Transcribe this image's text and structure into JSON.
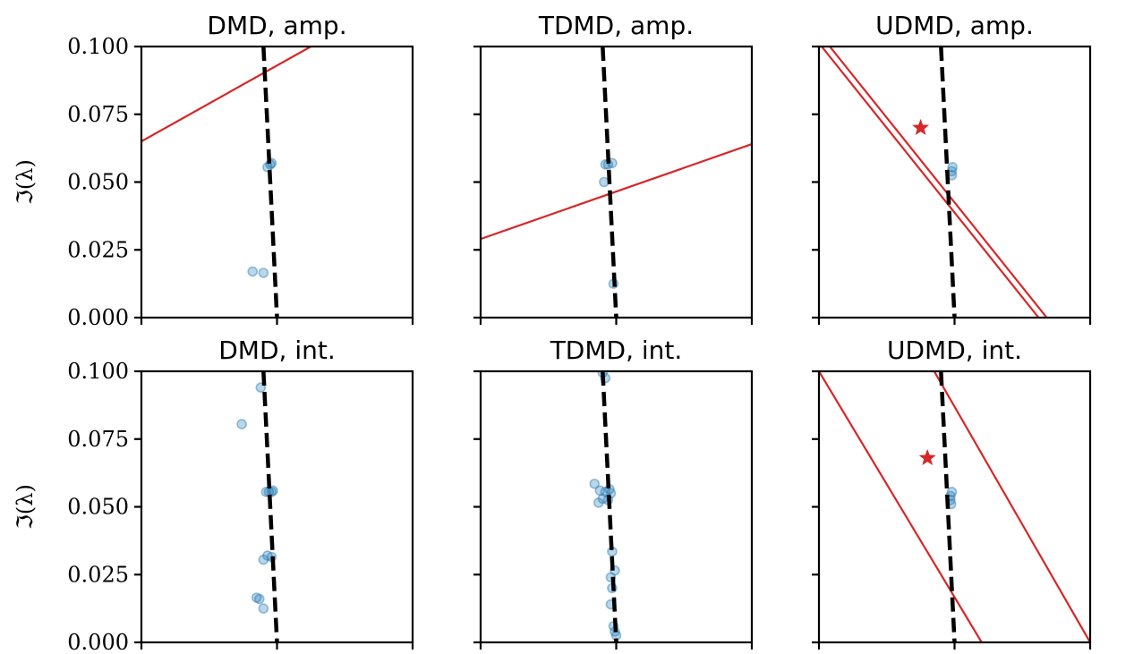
{
  "chart_data": {
    "type": "scatter",
    "ylabel": "ℑ(λ)",
    "ylim": [
      0,
      0.1
    ],
    "y_ticks": [
      "0.000",
      "0.025",
      "0.050",
      "0.075",
      "0.100"
    ],
    "xlim": [
      -1,
      1
    ],
    "panels": [
      {
        "title": "DMD, amp.",
        "dashed_curve": [
          [
            -0.1,
            0.1
          ],
          [
            0.0,
            0.0
          ]
        ],
        "lines": [
          [
            [
              -1.0,
              0.065
            ],
            [
              0.25,
              0.1
            ]
          ]
        ],
        "star": null,
        "points": [
          [
            -0.05,
            0.0565
          ],
          [
            -0.07,
            0.0555
          ],
          [
            -0.04,
            0.057
          ],
          [
            -0.18,
            0.017
          ],
          [
            -0.1,
            0.0165
          ]
        ]
      },
      {
        "title": "TDMD, amp.",
        "dashed_curve": [
          [
            -0.1,
            0.1
          ],
          [
            0.0,
            0.0
          ]
        ],
        "lines": [
          [
            [
              -1.0,
              0.029
            ],
            [
              1.0,
              0.064
            ]
          ]
        ],
        "star": null,
        "points": [
          [
            -0.08,
            0.0565
          ],
          [
            -0.06,
            0.0565
          ],
          [
            -0.03,
            0.057
          ],
          [
            -0.09,
            0.05
          ],
          [
            -0.02,
            0.0125
          ]
        ]
      },
      {
        "title": "UDMD, amp.",
        "dashed_curve": [
          [
            -0.1,
            0.1
          ],
          [
            0.0,
            0.0
          ]
        ],
        "lines": [
          [
            [
              -0.98,
              0.1
            ],
            [
              0.62,
              0.0
            ]
          ],
          [
            [
              -0.92,
              0.1
            ],
            [
              0.68,
              0.0
            ]
          ]
        ],
        "star": [
          -0.25,
          0.07
        ],
        "points": [
          [
            -0.02,
            0.054
          ],
          [
            -0.02,
            0.0525
          ],
          [
            -0.015,
            0.0555
          ]
        ]
      },
      {
        "title": "DMD, int.",
        "dashed_curve": [
          [
            -0.1,
            0.1
          ],
          [
            0.0,
            0.0
          ]
        ],
        "lines": [],
        "star": null,
        "points": [
          [
            -0.12,
            0.094
          ],
          [
            -0.26,
            0.0805
          ],
          [
            -0.08,
            0.0555
          ],
          [
            -0.06,
            0.0555
          ],
          [
            -0.04,
            0.0555
          ],
          [
            -0.03,
            0.056
          ],
          [
            -0.07,
            0.032
          ],
          [
            -0.1,
            0.0305
          ],
          [
            -0.04,
            0.0315
          ],
          [
            -0.15,
            0.0165
          ],
          [
            -0.13,
            0.016
          ],
          [
            -0.1,
            0.0125
          ]
        ]
      },
      {
        "title": "TDMD, int.",
        "dashed_curve": [
          [
            -0.1,
            0.1
          ],
          [
            0.0,
            0.0
          ]
        ],
        "lines": [],
        "star": null,
        "points": [
          [
            -0.1,
            0.0995
          ],
          [
            -0.08,
            0.0975
          ],
          [
            -0.16,
            0.0585
          ],
          [
            -0.12,
            0.056
          ],
          [
            -0.08,
            0.0555
          ],
          [
            -0.05,
            0.0565
          ],
          [
            -0.04,
            0.055
          ],
          [
            -0.1,
            0.053
          ],
          [
            -0.13,
            0.0515
          ],
          [
            -0.06,
            0.0525
          ],
          [
            -0.03,
            0.0335
          ],
          [
            -0.01,
            0.0265
          ],
          [
            -0.04,
            0.024
          ],
          [
            -0.03,
            0.02
          ],
          [
            -0.04,
            0.014
          ],
          [
            -0.02,
            0.006
          ],
          [
            -0.01,
            0.004
          ],
          [
            0.0,
            0.0025
          ]
        ]
      },
      {
        "title": "UDMD, int.",
        "dashed_curve": [
          [
            -0.1,
            0.1
          ],
          [
            0.0,
            0.0
          ]
        ],
        "lines": [
          [
            [
              -1.0,
              0.1
            ],
            [
              0.2,
              0.0
            ]
          ],
          [
            [
              -0.15,
              0.1
            ],
            [
              1.0,
              0.0
            ]
          ]
        ],
        "star": [
          -0.2,
          0.068
        ],
        "points": [
          [
            -0.03,
            0.054
          ],
          [
            -0.03,
            0.0525
          ],
          [
            -0.02,
            0.0555
          ],
          [
            -0.025,
            0.051
          ]
        ]
      }
    ],
    "colors": {
      "points": "#1f77b4",
      "lines": "#d62728",
      "dashed": "#000000"
    }
  }
}
